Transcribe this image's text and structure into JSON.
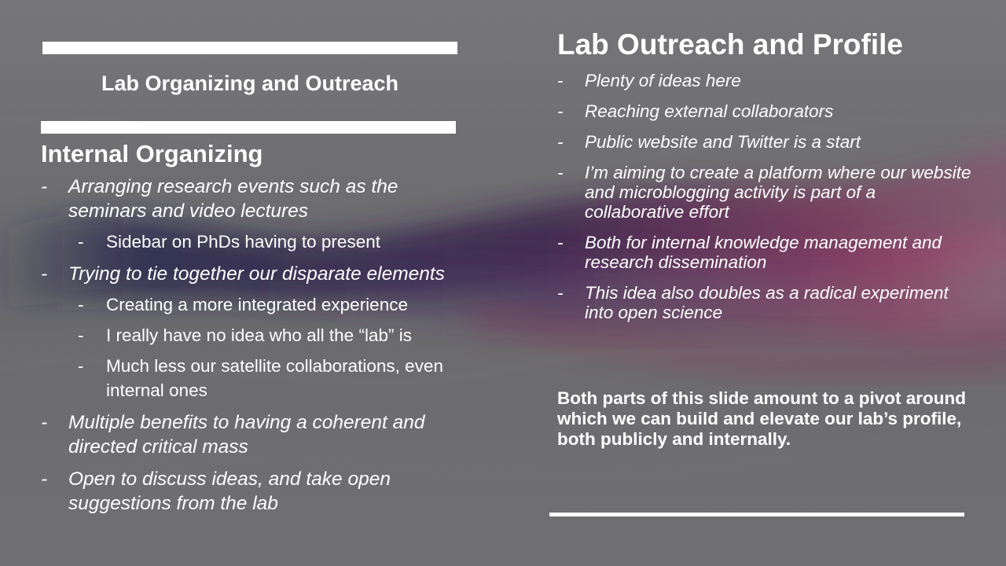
{
  "slide": {
    "left": {
      "box_title": "Lab Organizing and Outreach",
      "heading": "Internal Organizing",
      "items": [
        {
          "level": 1,
          "text": "Arranging research events such as the seminars and video lectures"
        },
        {
          "level": 2,
          "text": "Sidebar on PhDs having to present"
        },
        {
          "level": 1,
          "text": "Trying to tie together our disparate elements"
        },
        {
          "level": 2,
          "text": "Creating a more integrated experience"
        },
        {
          "level": 2,
          "text": "I really have no idea who all the “lab” is"
        },
        {
          "level": 2,
          "text": "Much less our satellite collaborations, even internal ones"
        },
        {
          "level": 1,
          "text": "Multiple benefits to having a coherent and directed critical mass"
        },
        {
          "level": 1,
          "text": "Open to discuss ideas, and take open suggestions from the lab"
        }
      ]
    },
    "right": {
      "heading": "Lab Outreach and Profile",
      "items": [
        "Plenty of ideas here",
        "Reaching external collaborators",
        "Public website and Twitter is a start",
        "I’m aiming to create a platform where our website and microblogging activity is part of a collaborative effort",
        " Both for internal knowledge management and research dissemination",
        "This idea also doubles as a radical experiment into open science"
      ],
      "summary": "Both parts of this slide amount to a pivot around which we can build and elevate our lab’s profile, both publicly and internally."
    },
    "bullet_char": "-",
    "colors": {
      "background": "#6e6e70",
      "smoke_dark": "#2a1f4a",
      "smoke_magenta": "#8a2f5e",
      "text": "#ffffff",
      "rule": "#ffffff"
    }
  }
}
